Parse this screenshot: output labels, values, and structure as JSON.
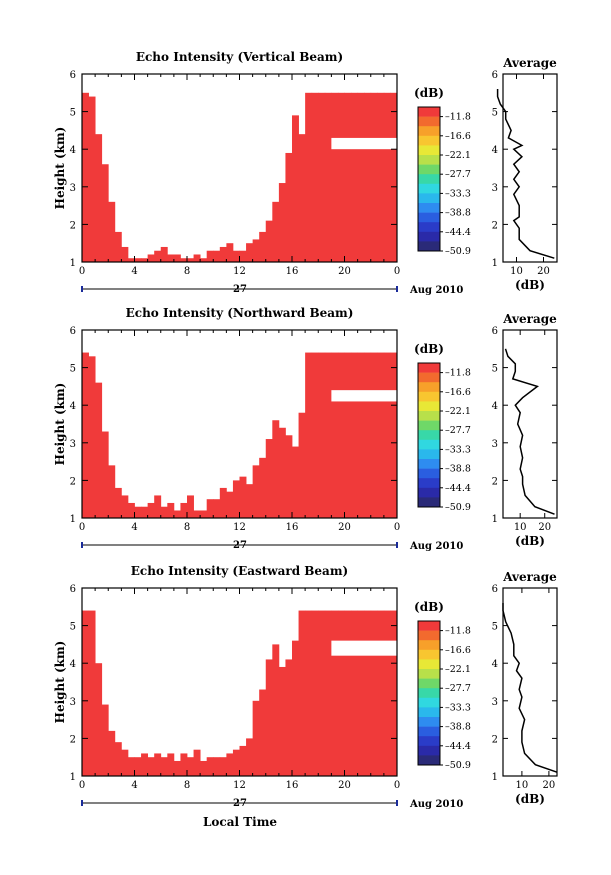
{
  "figure": {
    "xlabel": "Local Time",
    "date_label": "Aug 2010",
    "day_label": "27"
  },
  "colorbar": {
    "unit": "(dB)",
    "levels": [
      {
        "label": "–11.8",
        "color": "#f03a3a"
      },
      {
        "label": "",
        "color": "#f26a2e"
      },
      {
        "label": "–16.6",
        "color": "#f7a02a"
      },
      {
        "label": "",
        "color": "#f8c630"
      },
      {
        "label": "–22.1",
        "color": "#e8e836"
      },
      {
        "label": "",
        "color": "#b8e04a"
      },
      {
        "label": "–27.7",
        "color": "#6fd868"
      },
      {
        "label": "",
        "color": "#38d8a8"
      },
      {
        "label": "–33.3",
        "color": "#30d8e0"
      },
      {
        "label": "",
        "color": "#2ab8ec"
      },
      {
        "label": "–38.8",
        "color": "#2e8cf0"
      },
      {
        "label": "",
        "color": "#2a5ee0"
      },
      {
        "label": "–44.4",
        "color": "#2a3cc8"
      },
      {
        "label": "",
        "color": "#2a2aa8"
      },
      {
        "label": "–50.9",
        "color": "#2a2a78"
      }
    ]
  },
  "chart_data": [
    {
      "type": "heatmap",
      "title": "Echo Intensity (Vertical Beam)",
      "ylabel": "Height (km)",
      "xlim": [
        0,
        24
      ],
      "ylim": [
        1,
        6
      ],
      "xticks": [
        "0",
        "4",
        "8",
        "12",
        "16",
        "20",
        "0"
      ],
      "yticks": [
        "1",
        "2",
        "3",
        "4",
        "5",
        "6"
      ],
      "fill_color": "#f03a3a",
      "tops_km": [
        5.5,
        5.4,
        4.4,
        3.6,
        2.6,
        1.8,
        1.4,
        1.1,
        1.1,
        1.1,
        1.2,
        1.3,
        1.4,
        1.2,
        1.2,
        1.1,
        1.1,
        1.2,
        1.1,
        1.3,
        1.3,
        1.4,
        1.5,
        1.3,
        1.3,
        1.5,
        1.6,
        1.8,
        2.1,
        2.6,
        3.1,
        3.9,
        4.9,
        4.4,
        5.5,
        5.5,
        5.5,
        5.5,
        5.5,
        5.5,
        5.5,
        5.5,
        5.5,
        5.5,
        5.5,
        5.5,
        5.5,
        5.5
      ],
      "gaps_km": [
        [
          19.0,
          24.0,
          4.3,
          4.0
        ]
      ],
      "profile": {
        "title": "Average",
        "xlabel": "(dB)",
        "xlim": [
          5,
          25
        ],
        "xticks": [
          "10",
          "20"
        ],
        "heights_km": [
          1.1,
          1.3,
          1.6,
          1.9,
          2.1,
          2.2,
          2.5,
          2.8,
          3.0,
          3.2,
          3.4,
          3.6,
          3.8,
          4.0,
          4.1,
          4.3,
          4.5,
          4.8,
          5.0,
          5.2,
          5.4,
          5.6
        ],
        "values_db": [
          24,
          15,
          11,
          11,
          9,
          11,
          11,
          9,
          11,
          9,
          11,
          9,
          12,
          9,
          12,
          7,
          8,
          6,
          6,
          4,
          3,
          3
        ]
      }
    },
    {
      "type": "heatmap",
      "title": "Echo Intensity (Northward Beam)",
      "ylabel": "Height (km)",
      "xlim": [
        0,
        24
      ],
      "ylim": [
        1,
        6
      ],
      "xticks": [
        "0",
        "4",
        "8",
        "12",
        "16",
        "20",
        "0"
      ],
      "yticks": [
        "1",
        "2",
        "3",
        "4",
        "5",
        "6"
      ],
      "fill_color": "#f03a3a",
      "tops_km": [
        5.4,
        5.3,
        4.6,
        3.3,
        2.4,
        1.8,
        1.6,
        1.4,
        1.3,
        1.3,
        1.4,
        1.6,
        1.3,
        1.4,
        1.2,
        1.4,
        1.6,
        1.2,
        1.2,
        1.5,
        1.5,
        1.8,
        1.7,
        2.0,
        2.1,
        1.9,
        2.4,
        2.6,
        3.1,
        3.6,
        3.4,
        3.2,
        2.9,
        3.8,
        5.4,
        5.4,
        5.4,
        5.4,
        5.4,
        5.4,
        5.4,
        5.4,
        5.4,
        5.4,
        5.4,
        5.4,
        5.4,
        5.4
      ],
      "gaps_km": [
        [
          19.0,
          24.0,
          4.4,
          4.1
        ]
      ],
      "profile": {
        "title": "Average",
        "xlabel": "(dB)",
        "xlim": [
          3,
          25
        ],
        "xticks": [
          "10",
          "20"
        ],
        "heights_km": [
          1.1,
          1.3,
          1.6,
          1.9,
          2.1,
          2.3,
          2.6,
          2.9,
          3.2,
          3.5,
          3.8,
          4.0,
          4.2,
          4.5,
          4.7,
          4.9,
          5.1,
          5.3,
          5.5
        ],
        "values_db": [
          24,
          16,
          12,
          11,
          11,
          10,
          11,
          10,
          11,
          9,
          10,
          8,
          11,
          17,
          7,
          8,
          8,
          5,
          4
        ]
      }
    },
    {
      "type": "heatmap",
      "title": "Echo Intensity (Eastward Beam)",
      "ylabel": "Height (km)",
      "xlim": [
        0,
        24
      ],
      "ylim": [
        1,
        6
      ],
      "xticks": [
        "0",
        "4",
        "8",
        "12",
        "16",
        "20",
        "0"
      ],
      "yticks": [
        "1",
        "2",
        "3",
        "4",
        "5",
        "6"
      ],
      "fill_color": "#f03a3a",
      "tops_km": [
        5.4,
        5.4,
        4.0,
        2.9,
        2.2,
        1.9,
        1.7,
        1.5,
        1.5,
        1.6,
        1.5,
        1.6,
        1.5,
        1.6,
        1.4,
        1.6,
        1.5,
        1.7,
        1.4,
        1.5,
        1.5,
        1.5,
        1.6,
        1.7,
        1.8,
        2.0,
        3.0,
        3.3,
        4.1,
        4.5,
        3.9,
        4.1,
        4.6,
        5.4,
        5.4,
        5.4,
        5.4,
        5.4,
        5.4,
        5.4,
        5.4,
        5.4,
        5.4,
        5.4,
        5.4,
        5.4,
        5.4,
        5.4
      ],
      "gaps_km": [
        [
          19.0,
          24.0,
          4.6,
          4.2
        ]
      ],
      "profile": {
        "title": "Average",
        "xlabel": "(dB)",
        "xlim": [
          3,
          23
        ],
        "xticks": [
          "10",
          "20"
        ],
        "heights_km": [
          1.1,
          1.3,
          1.6,
          1.9,
          2.2,
          2.5,
          2.8,
          3.1,
          3.3,
          3.6,
          3.8,
          4.0,
          4.2,
          4.5,
          4.8,
          5.1,
          5.4,
          5.6
        ],
        "values_db": [
          23,
          15,
          11,
          10,
          10,
          11,
          9,
          10,
          9,
          10,
          8,
          9,
          7,
          7,
          6,
          4,
          3,
          3
        ]
      }
    }
  ]
}
